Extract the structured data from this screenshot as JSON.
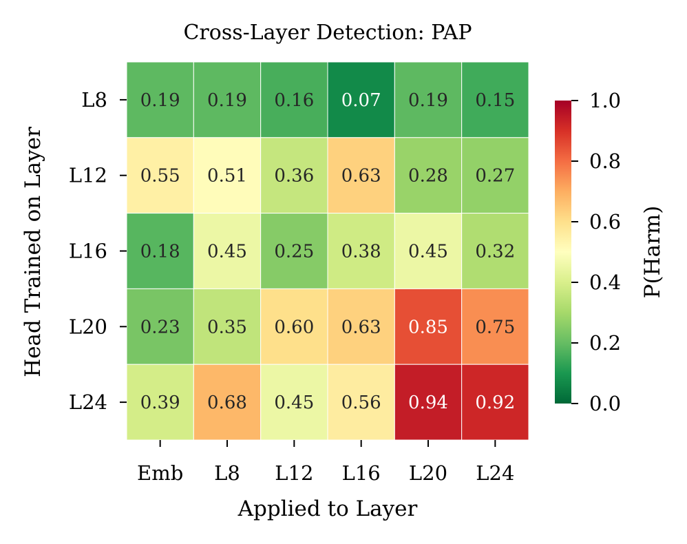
{
  "chart_data": {
    "type": "heatmap",
    "title": "Cross-Layer Detection: PAP",
    "xlabel": "Applied to Layer",
    "ylabel": "Head Trained on Layer",
    "x_categories": [
      "Emb",
      "L8",
      "L12",
      "L16",
      "L20",
      "L24"
    ],
    "y_categories": [
      "L8",
      "L12",
      "L16",
      "L20",
      "L24"
    ],
    "values": [
      [
        0.19,
        0.19,
        0.16,
        0.07,
        0.19,
        0.15
      ],
      [
        0.55,
        0.51,
        0.36,
        0.63,
        0.28,
        0.27
      ],
      [
        0.18,
        0.45,
        0.25,
        0.38,
        0.45,
        0.32
      ],
      [
        0.23,
        0.35,
        0.6,
        0.63,
        0.85,
        0.75
      ],
      [
        0.39,
        0.68,
        0.45,
        0.56,
        0.94,
        0.92
      ]
    ],
    "colorbar": {
      "label": "P(Harm)",
      "range": [
        0.0,
        1.0
      ],
      "ticks": [
        "0.0",
        "0.2",
        "0.4",
        "0.6",
        "0.8",
        "1.0"
      ],
      "colormap": "RdYlGn_r"
    }
  }
}
